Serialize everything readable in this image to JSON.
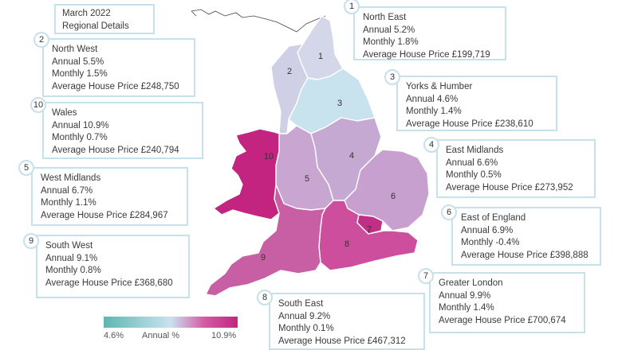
{
  "header": {
    "date": "March 2022",
    "subtitle": "Regional Details"
  },
  "regions": [
    {
      "number": "1",
      "name": "North East",
      "annual": "Annual 5.2%",
      "monthly": "Monthly 1.8%",
      "price": "Average House Price £199,719",
      "color": "#d4d6ea"
    },
    {
      "number": "2",
      "name": "North West",
      "annual": "Annual 5.5%",
      "monthly": "Monthly 1.5%",
      "price": "Average House Price £248,750",
      "color": "#cfcfe6"
    },
    {
      "number": "3",
      "name": "Yorks & Humber",
      "annual": "Annual 4.6%",
      "monthly": "Monthly 1.4%",
      "price": "Average House Price £238,610",
      "color": "#c8e2ee"
    },
    {
      "number": "4",
      "name": "East Midlands",
      "annual": "Annual 6.6%",
      "monthly": "Monthly 0.5%",
      "price": "Average House Price £273,952",
      "color": "#c6a9d3"
    },
    {
      "number": "5",
      "name": "West Midlands",
      "annual": "Annual 6.7%",
      "monthly": "Monthly 1.1%",
      "price": "Average House Price £284,967",
      "color": "#c9a6d2"
    },
    {
      "number": "6",
      "name": "East of England",
      "annual": "Annual 6.9%",
      "monthly": "Monthly -0.4%",
      "price": "Average House Price £398,888",
      "color": "#c7a0cf"
    },
    {
      "number": "7",
      "name": "Greater London",
      "annual": "Annual 9.9%",
      "monthly": "Monthly 1.4%",
      "price": "Average House Price £700,674",
      "color": "#c12e86"
    },
    {
      "number": "8",
      "name": "South East",
      "annual": "Annual 9.2%",
      "monthly": "Monthly 0.1%",
      "price": "Average House Price £467,312",
      "color": "#cc4e9c"
    },
    {
      "number": "9",
      "name": "South West",
      "annual": "Annual 9.1%",
      "monthly": "Monthly 0.8%",
      "price": "Average House Price £368,680",
      "color": "#c85fa5"
    },
    {
      "number": "10",
      "name": "Wales",
      "annual": "Annual 10.9%",
      "monthly": "Monthly 0.7%",
      "price": "Average House Price £240,794",
      "color": "#c2247f"
    }
  ],
  "legend": {
    "min": "4.6%",
    "label": "Annual %",
    "max": "10.9%"
  },
  "colors": {
    "border": "#c6e0ec",
    "low": "#5fb6b2",
    "high": "#c2267f"
  }
}
